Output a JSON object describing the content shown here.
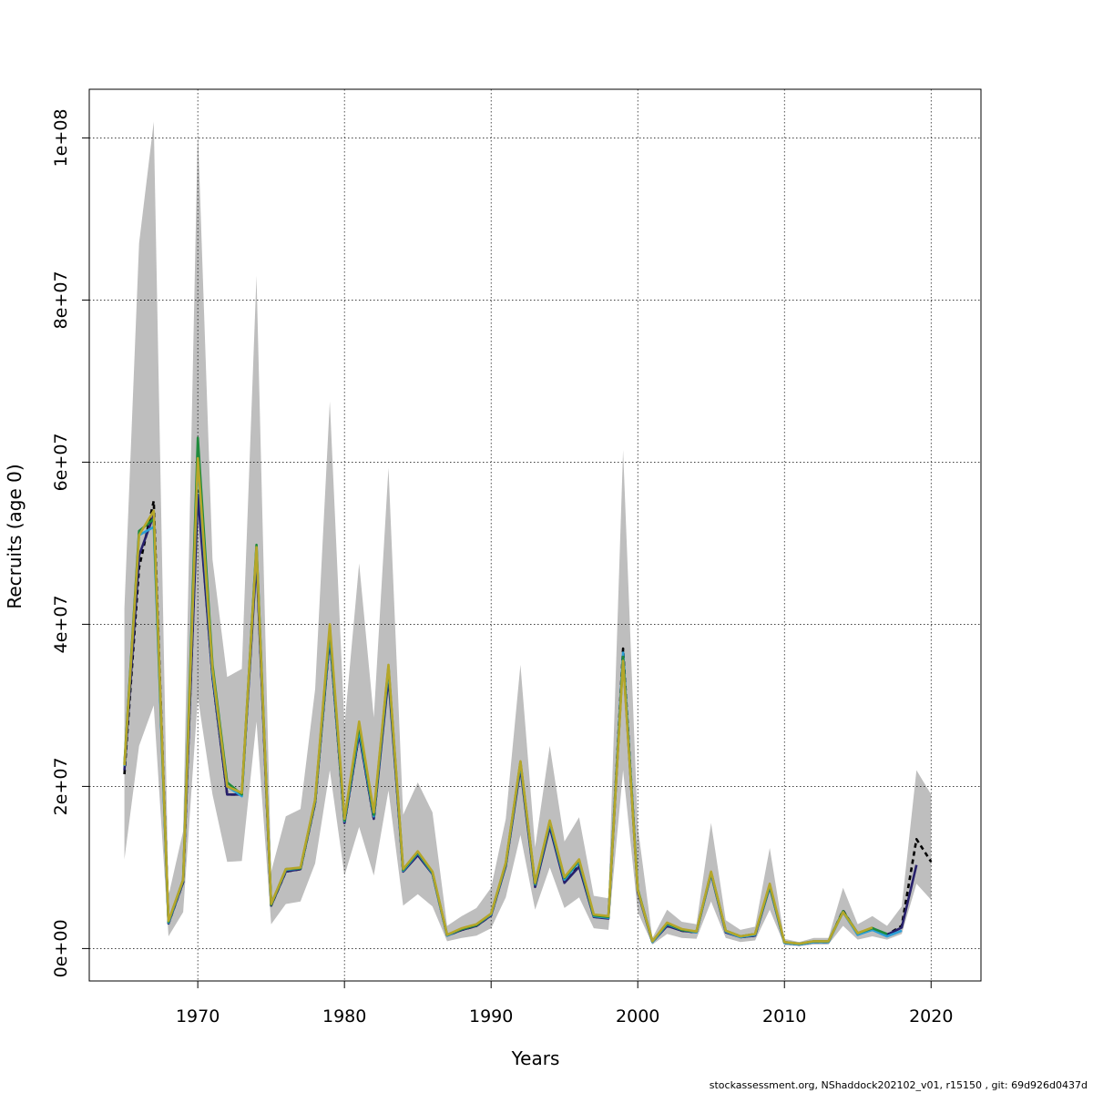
{
  "chart_data": {
    "type": "line",
    "xlabel": "Years",
    "ylabel": "Recruits (age 0)",
    "xlim": [
      1962.6,
      2023.4
    ],
    "ylim": [
      -4000000,
      106000000
    ],
    "x_ticks": [
      1970,
      1980,
      1990,
      2000,
      2010,
      2020
    ],
    "x_tick_labels": [
      "1970",
      "1980",
      "1990",
      "2000",
      "2010",
      "2020"
    ],
    "y_ticks": [
      0,
      20000000,
      40000000,
      60000000,
      80000000,
      100000000
    ],
    "y_tick_labels": [
      "0e+00",
      "2e+07",
      "4e+07",
      "6e+07",
      "8e+07",
      "1e+08"
    ],
    "grid": true,
    "band": {
      "x": [
        1965,
        1966,
        1967,
        1968,
        1969,
        1970,
        1971,
        1972,
        1973,
        1974,
        1975,
        1976,
        1977,
        1978,
        1979,
        1980,
        1981,
        1982,
        1983,
        1984,
        1985,
        1986,
        1987,
        1988,
        1989,
        1990,
        1991,
        1992,
        1993,
        1994,
        1995,
        1996,
        1997,
        1998,
        1999,
        2000,
        2001,
        2002,
        2003,
        2004,
        2005,
        2006,
        2007,
        2008,
        2009,
        2010,
        2011,
        2012,
        2013,
        2014,
        2015,
        2016,
        2017,
        2018,
        2019,
        2020
      ],
      "upper": [
        42000000,
        87000000,
        102000000,
        6500000,
        14500000,
        101000000,
        48000000,
        33500000,
        34500000,
        83000000,
        9500000,
        16300000,
        17200000,
        32000000,
        67500000,
        27500000,
        47500000,
        28500000,
        59300000,
        16500000,
        20500000,
        16800000,
        2800000,
        4000000,
        5000000,
        7500000,
        16000000,
        35000000,
        12500000,
        25000000,
        13200000,
        16200000,
        6500000,
        6200000,
        61500000,
        15000000,
        1300000,
        4800000,
        3300000,
        3000000,
        15500000,
        3500000,
        2300000,
        2700000,
        12400000,
        1200000,
        800000,
        1300000,
        1300000,
        7500000,
        3000000,
        4000000,
        2800000,
        5200000,
        22000000,
        19000000
      ],
      "lower": [
        11000000,
        25000000,
        30000000,
        1500000,
        4500000,
        31000000,
        19000000,
        10700000,
        10800000,
        28000000,
        3000000,
        5500000,
        5800000,
        10500000,
        22000000,
        9000000,
        15000000,
        9000000,
        19500000,
        5300000,
        6700000,
        5200000,
        900000,
        1300000,
        1600000,
        2500000,
        6300000,
        14000000,
        4800000,
        10000000,
        5000000,
        6300000,
        2500000,
        2300000,
        22000000,
        4500000,
        500000,
        1800000,
        1300000,
        1200000,
        5800000,
        1300000,
        800000,
        1000000,
        4800000,
        400000,
        300000,
        500000,
        500000,
        2800000,
        1100000,
        1500000,
        1100000,
        1800000,
        8000000,
        6000000
      ]
    },
    "series": [
      {
        "color": "#000000",
        "dash": true,
        "x": [
          1965,
          1966,
          1967,
          1968,
          1969,
          1970,
          1971,
          1972,
          1973,
          1974,
          1975,
          1976,
          1977,
          1978,
          1979,
          1980,
          1981,
          1982,
          1983,
          1984,
          1985,
          1986,
          1987,
          1988,
          1989,
          1990,
          1991,
          1992,
          1993,
          1994,
          1995,
          1996,
          1997,
          1998,
          1999,
          2000,
          2001,
          2002,
          2003,
          2004,
          2005,
          2006,
          2007,
          2008,
          2009,
          2010,
          2011,
          2012,
          2013,
          2014,
          2015,
          2016,
          2017,
          2018,
          2019,
          2020
        ],
        "y": [
          21500000,
          47000000,
          55200000,
          3100000,
          8200000,
          56500000,
          33500000,
          19000000,
          19000000,
          48500000,
          5300000,
          9500000,
          9800000,
          18000000,
          38500000,
          15500000,
          26500000,
          16000000,
          34000000,
          9500000,
          11600000,
          9300000,
          1600000,
          2300000,
          2800000,
          4100000,
          10300000,
          22500000,
          7800000,
          15300000,
          8300000,
          10400000,
          3900000,
          3800000,
          37000000,
          7200000,
          800000,
          2900000,
          2200000,
          2000000,
          9400000,
          2100000,
          1400000,
          1600000,
          7800000,
          700000,
          500000,
          800000,
          800000,
          4700000,
          1800000,
          2500000,
          1700000,
          2800000,
          13500000,
          10700000
        ]
      },
      {
        "color": "#27206b",
        "dash": false,
        "x": [
          1965,
          1966,
          1967,
          1968,
          1969,
          1970,
          1971,
          1972,
          1973,
          1974,
          1975,
          1976,
          1977,
          1978,
          1979,
          1980,
          1981,
          1982,
          1983,
          1984,
          1985,
          1986,
          1987,
          1988,
          1989,
          1990,
          1991,
          1992,
          1993,
          1994,
          1995,
          1996,
          1997,
          1998,
          1999,
          2000,
          2001,
          2002,
          2003,
          2004,
          2005,
          2006,
          2007,
          2008,
          2009,
          2010,
          2011,
          2012,
          2013,
          2014,
          2015,
          2016,
          2017,
          2018,
          2019
        ],
        "y": [
          22000000,
          48500000,
          53500000,
          3100000,
          8200000,
          56000000,
          33500000,
          19000000,
          19000000,
          48000000,
          5300000,
          9500000,
          9800000,
          18000000,
          38500000,
          15500000,
          26500000,
          16000000,
          33500000,
          9500000,
          11500000,
          9200000,
          1600000,
          2300000,
          2800000,
          4100000,
          10200000,
          22300000,
          7600000,
          15000000,
          8100000,
          10100000,
          3900000,
          3700000,
          36000000,
          7000000,
          800000,
          2800000,
          2200000,
          2000000,
          9200000,
          2000000,
          1400000,
          1600000,
          7600000,
          700000,
          500000,
          800000,
          800000,
          4600000,
          1700000,
          2400000,
          1700000,
          2600000,
          10300000
        ]
      },
      {
        "color": "#2b9fd6",
        "dash": false,
        "x": [
          1965,
          1966,
          1967,
          1968,
          1969,
          1970,
          1971,
          1972,
          1973,
          1974,
          1975,
          1976,
          1977,
          1978,
          1979,
          1980,
          1981,
          1982,
          1983,
          1984,
          1985,
          1986,
          1987,
          1988,
          1989,
          1990,
          1991,
          1992,
          1993,
          1994,
          1995,
          1996,
          1997,
          1998,
          1999,
          2000,
          2001,
          2002,
          2003,
          2004,
          2005,
          2006,
          2007,
          2008,
          2009,
          2010,
          2011,
          2012,
          2013,
          2014,
          2015,
          2016,
          2017,
          2018
        ],
        "y": [
          22500000,
          51000000,
          52000000,
          3200000,
          8400000,
          60000000,
          34000000,
          20000000,
          18800000,
          49500000,
          5400000,
          9700000,
          9900000,
          18200000,
          39000000,
          15700000,
          27000000,
          16300000,
          34500000,
          9600000,
          11800000,
          9300000,
          1600000,
          2400000,
          2900000,
          4200000,
          10400000,
          22800000,
          7900000,
          15500000,
          8500000,
          10700000,
          4000000,
          3800000,
          36500000,
          7200000,
          800000,
          3000000,
          2300000,
          2000000,
          9300000,
          2100000,
          1400000,
          1700000,
          7700000,
          700000,
          500000,
          800000,
          800000,
          4500000,
          1700000,
          2300000,
          1500000,
          2200000
        ]
      },
      {
        "color": "#1f8a3c",
        "dash": false,
        "x": [
          1965,
          1966,
          1967,
          1968,
          1969,
          1970,
          1971,
          1972,
          1973,
          1974,
          1975,
          1976,
          1977,
          1978,
          1979,
          1980,
          1981,
          1982,
          1983,
          1984,
          1985,
          1986,
          1987,
          1988,
          1989,
          1990,
          1991,
          1992,
          1993,
          1994,
          1995,
          1996,
          1997,
          1998,
          1999,
          2000,
          2001,
          2002,
          2003,
          2004,
          2005,
          2006,
          2007,
          2008,
          2009,
          2010,
          2011,
          2012,
          2013,
          2014,
          2015,
          2016,
          2017
        ],
        "y": [
          22800000,
          51500000,
          53000000,
          3300000,
          8500000,
          63000000,
          35000000,
          20500000,
          19000000,
          49800000,
          5400000,
          9800000,
          9900000,
          18300000,
          39500000,
          15800000,
          27500000,
          16500000,
          34800000,
          9700000,
          11900000,
          9400000,
          1700000,
          2400000,
          2900000,
          4300000,
          10500000,
          23000000,
          8000000,
          15700000,
          8700000,
          10900000,
          4100000,
          3900000,
          36000000,
          7300000,
          900000,
          3100000,
          2300000,
          2100000,
          9400000,
          2200000,
          1500000,
          1800000,
          7800000,
          800000,
          600000,
          900000,
          900000,
          4600000,
          1900000,
          2500000,
          1800000
        ]
      },
      {
        "color": "#b5a62a",
        "dash": false,
        "x": [
          1965,
          1966,
          1967,
          1968,
          1969,
          1970,
          1971,
          1972,
          1973,
          1974,
          1975,
          1976,
          1977,
          1978,
          1979,
          1980,
          1981,
          1982,
          1983,
          1984,
          1985,
          1986,
          1987,
          1988,
          1989,
          1990,
          1991,
          1992,
          1993,
          1994,
          1995,
          1996,
          1997,
          1998,
          1999,
          2000,
          2001,
          2002,
          2003,
          2004,
          2005,
          2006,
          2007,
          2008,
          2009,
          2010,
          2011,
          2012,
          2013,
          2014,
          2015,
          2016
        ],
        "y": [
          22600000,
          51000000,
          54000000,
          3400000,
          8500000,
          60500000,
          34500000,
          20000000,
          19200000,
          49500000,
          5500000,
          9800000,
          10000000,
          18400000,
          40000000,
          16000000,
          28000000,
          16800000,
          35000000,
          9800000,
          12000000,
          9500000,
          1700000,
          2500000,
          3000000,
          4300000,
          10600000,
          23100000,
          8100000,
          15800000,
          8800000,
          11000000,
          4200000,
          4000000,
          35500000,
          7200000,
          900000,
          3200000,
          2400000,
          2100000,
          9500000,
          2200000,
          1500000,
          1800000,
          8000000,
          800000,
          600000,
          900000,
          900000,
          4500000,
          1900000,
          2600000
        ]
      }
    ]
  },
  "footer": "stockassessment.org, NShaddock202102_v01, r15150 , git: 69d926d0437d"
}
